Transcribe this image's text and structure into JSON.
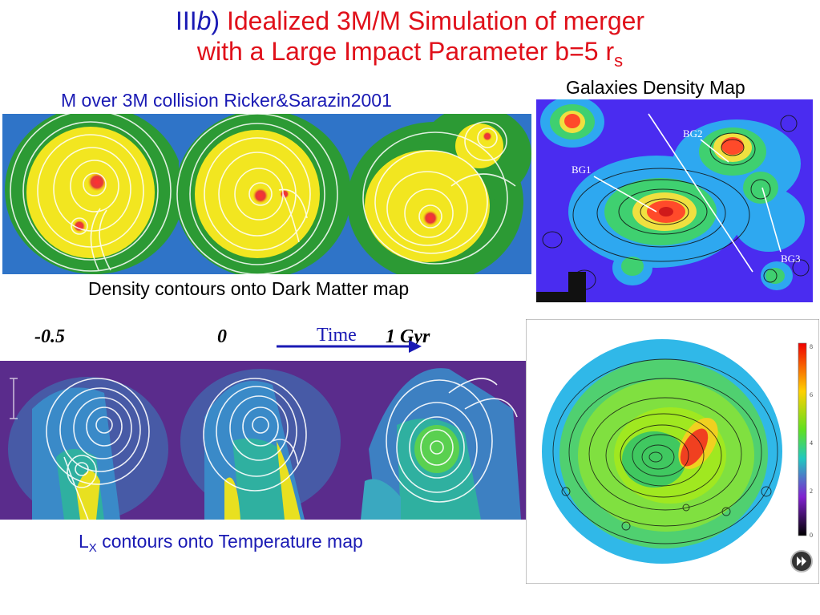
{
  "title": {
    "line1_prefix": "III",
    "line1_b": "b",
    "line1_paren": ")",
    "line1_rest": " Idealized 3M/M Simulation of merger",
    "line2": "with a Large Impact Parameter b=5 r",
    "line2_sub": "s"
  },
  "top_left": {
    "caption": "M over 3M collision Ricker&Sarazin2001",
    "bottom_caption": "Density contours onto Dark Matter map"
  },
  "top_right": {
    "caption": "Galaxies Density Map",
    "labels": {
      "bg1": "BG1",
      "bg2": "BG2",
      "bg3": "BG3"
    }
  },
  "timeline": {
    "t1": "-0.5",
    "t2": "0",
    "arrow_label": "Time",
    "t3": "1 Gyr"
  },
  "bottom_left": {
    "caption_prefix": "L",
    "caption_sub": "X",
    "caption_rest": " contours onto Temperature map"
  },
  "bottom_right": {
    "colorbar_ticks": [
      "8",
      "6",
      "4",
      "2",
      "0"
    ]
  },
  "colors": {
    "title_blue": "#1a1ab4",
    "title_red": "#e0101a",
    "arrow_blue": "#1a1ab4"
  },
  "icons": {
    "nav": "fast-forward-icon"
  }
}
